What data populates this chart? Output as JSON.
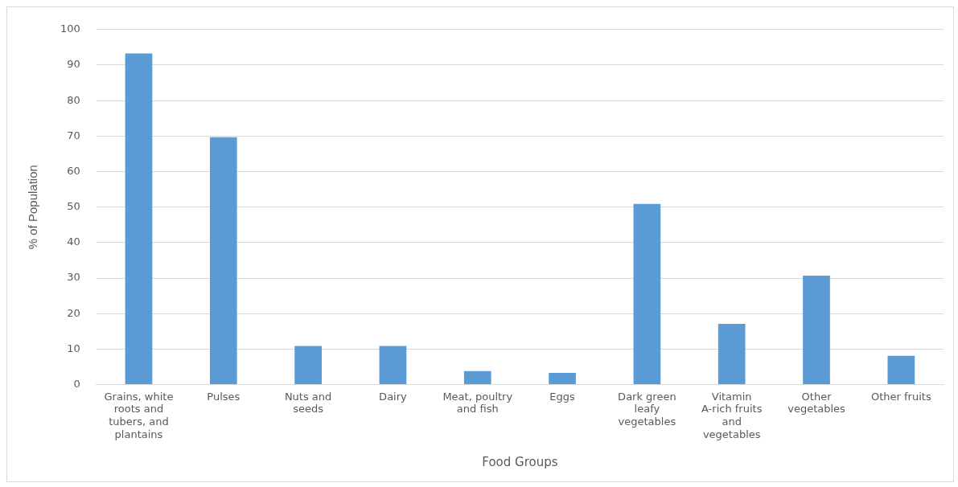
{
  "chart_data": {
    "type": "bar",
    "xlabel": "Food Groups",
    "ylabel": "% of Population",
    "categories": [
      "Grains, white roots and tubers, and plantains",
      "Pulses",
      "Nuts and seeds",
      "Dairy",
      "Meat, poultry and fish",
      "Eggs",
      "Dark green leafy vegetables",
      "Vitamin A-rich fruits and vegetables",
      "Other vegetables",
      "Other fruits"
    ],
    "values": [
      93.3,
      69.7,
      10.9,
      10.9,
      3.8,
      3.3,
      50.9,
      17.1,
      30.7,
      8.1
    ],
    "color": "#5b9bd5",
    "ylim": [
      0,
      100
    ],
    "yticks": [
      0,
      10,
      20,
      30,
      40,
      50,
      60,
      70,
      80,
      90,
      100
    ],
    "grid": "y",
    "legend": false
  }
}
